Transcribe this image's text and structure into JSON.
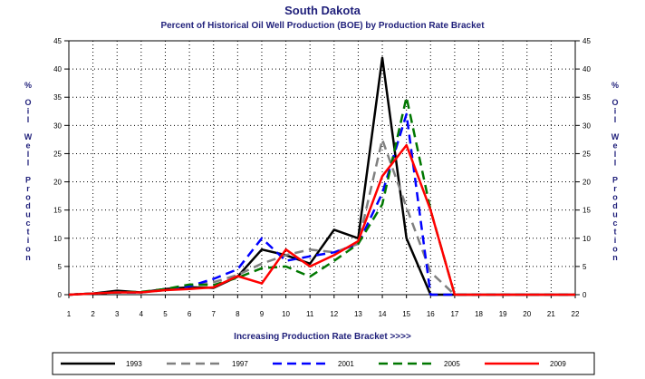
{
  "chart_data": {
    "type": "line",
    "title": "South Dakota",
    "subtitle": "Percent of Historical Oil Well Production (BOE) by Production Rate Bracket",
    "xlabel": "Increasing Production Rate Bracket >>>>",
    "ylabel": "% Oil Well Production",
    "x": [
      1,
      2,
      3,
      4,
      5,
      6,
      7,
      8,
      9,
      10,
      11,
      12,
      13,
      14,
      15,
      16,
      17,
      18,
      19,
      20,
      21,
      22
    ],
    "xlim": [
      1,
      22
    ],
    "ylim": [
      0,
      45
    ],
    "yticks": [
      0,
      5,
      10,
      15,
      20,
      25,
      30,
      35,
      40,
      45
    ],
    "grid": true,
    "legend_position": "bottom",
    "series": [
      {
        "name": "1993",
        "color": "#000000",
        "dash": "solid",
        "values": [
          0,
          0.2,
          0.7,
          0.4,
          1,
          1.3,
          1.2,
          3.2,
          8,
          7,
          5.5,
          11.5,
          10,
          42,
          10,
          0,
          0,
          0,
          0,
          0,
          0,
          0
        ]
      },
      {
        "name": "1997",
        "color": "#808080",
        "dash": "dashed",
        "values": [
          0,
          0.2,
          0.4,
          0.4,
          0.8,
          1.5,
          2.2,
          3.5,
          5.5,
          7,
          8,
          7.5,
          9,
          27.5,
          15.5,
          4,
          0,
          0,
          0,
          0,
          0,
          0
        ]
      },
      {
        "name": "2001",
        "color": "#0000ff",
        "dash": "dashed",
        "values": [
          0,
          0.2,
          0.4,
          0.4,
          1,
          1.5,
          2.8,
          4.5,
          10,
          6,
          6.8,
          7.5,
          9,
          18,
          32,
          0,
          0,
          0,
          0,
          0,
          0,
          0
        ]
      },
      {
        "name": "2005",
        "color": "#007700",
        "dash": "dashed",
        "values": [
          0,
          0.2,
          0.4,
          0.5,
          1,
          1.8,
          1.7,
          3,
          4.7,
          5,
          3.2,
          6,
          9,
          16,
          35,
          15,
          0,
          0,
          0,
          0,
          0,
          0
        ]
      },
      {
        "name": "2009",
        "color": "#ff0000",
        "dash": "solid",
        "values": [
          0,
          0.2,
          0.4,
          0.4,
          0.8,
          1,
          1.3,
          3.3,
          2,
          8,
          5,
          7,
          9.5,
          21,
          26.5,
          15,
          0,
          0,
          0,
          0,
          0,
          0
        ]
      }
    ]
  }
}
